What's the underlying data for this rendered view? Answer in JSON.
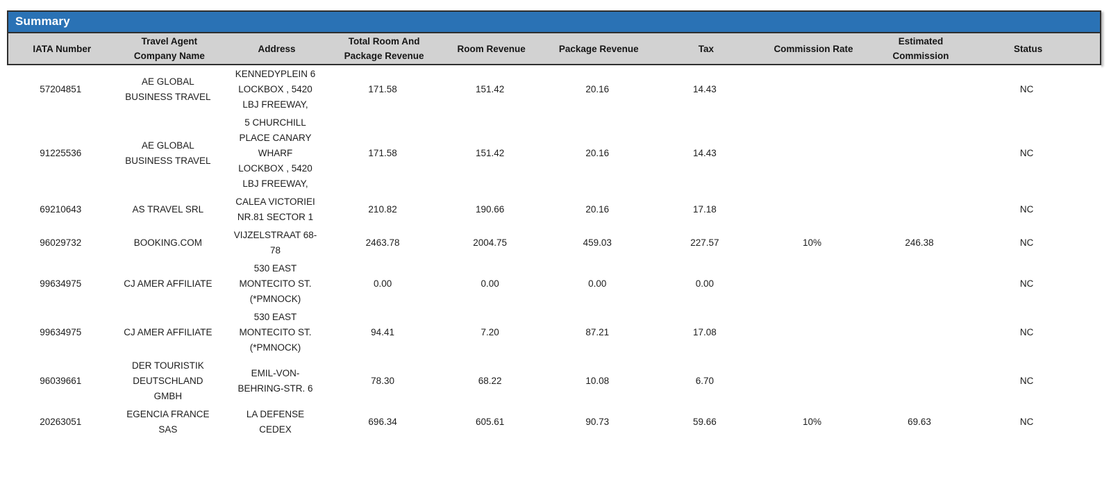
{
  "title_bar": {
    "label": "Summary"
  },
  "colors": {
    "title_bar_bg": "#2a72b5",
    "title_bar_text": "#ffffff",
    "column_header_bg": "#d2d2d2",
    "border": "#2f2f2f",
    "body_text": "#1d1d1d"
  },
  "table": {
    "columns": [
      {
        "key": "iata",
        "label": "IATA Number"
      },
      {
        "key": "company",
        "label": "Travel Agent\nCompany Name"
      },
      {
        "key": "address",
        "label": "Address"
      },
      {
        "key": "total_revenue",
        "label": "Total Room And\nPackage Revenue"
      },
      {
        "key": "room_revenue",
        "label": "Room Revenue"
      },
      {
        "key": "package_revenue",
        "label": "Package Revenue"
      },
      {
        "key": "tax",
        "label": "Tax"
      },
      {
        "key": "commission_rate",
        "label": "Commission Rate"
      },
      {
        "key": "estimated_commission",
        "label": "Estimated\nCommission"
      },
      {
        "key": "status",
        "label": "Status"
      }
    ],
    "rows": [
      {
        "iata": "57204851",
        "company": "AE GLOBAL\nBUSINESS TRAVEL",
        "address": "KENNEDYPLEIN 6\nLOCKBOX , 5420\nLBJ FREEWAY,",
        "total_revenue": "171.58",
        "room_revenue": "151.42",
        "package_revenue": "20.16",
        "tax": "14.43",
        "commission_rate": "",
        "estimated_commission": "",
        "status": "NC"
      },
      {
        "iata": "91225536",
        "company": "AE GLOBAL\nBUSINESS TRAVEL",
        "address": "5 CHURCHILL\nPLACE CANARY\nWHARF\nLOCKBOX , 5420\nLBJ FREEWAY,",
        "total_revenue": "171.58",
        "room_revenue": "151.42",
        "package_revenue": "20.16",
        "tax": "14.43",
        "commission_rate": "",
        "estimated_commission": "",
        "status": "NC"
      },
      {
        "iata": "69210643",
        "company": "AS TRAVEL SRL",
        "address": "CALEA VICTORIEI\nNR.81 SECTOR 1",
        "total_revenue": "210.82",
        "room_revenue": "190.66",
        "package_revenue": "20.16",
        "tax": "17.18",
        "commission_rate": "",
        "estimated_commission": "",
        "status": "NC"
      },
      {
        "iata": "96029732",
        "company": "BOOKING.COM",
        "address": "VIJZELSTRAAT 68-\n78",
        "total_revenue": "2463.78",
        "room_revenue": "2004.75",
        "package_revenue": "459.03",
        "tax": "227.57",
        "commission_rate": "10%",
        "estimated_commission": "246.38",
        "status": "NC"
      },
      {
        "iata": "99634975",
        "company": "CJ AMER AFFILIATE",
        "address": "530 EAST\nMONTECITO ST.\n(*PMNOCK)",
        "total_revenue": "0.00",
        "room_revenue": "0.00",
        "package_revenue": "0.00",
        "tax": "0.00",
        "commission_rate": "",
        "estimated_commission": "",
        "status": "NC"
      },
      {
        "iata": "99634975",
        "company": "CJ AMER AFFILIATE",
        "address": "530 EAST\nMONTECITO ST.\n(*PMNOCK)",
        "total_revenue": "94.41",
        "room_revenue": "7.20",
        "package_revenue": "87.21",
        "tax": "17.08",
        "commission_rate": "",
        "estimated_commission": "",
        "status": "NC"
      },
      {
        "iata": "96039661",
        "company": "DER TOURISTIK\nDEUTSCHLAND\nGMBH",
        "address": "EMIL-VON-\nBEHRING-STR. 6",
        "total_revenue": "78.30",
        "room_revenue": "68.22",
        "package_revenue": "10.08",
        "tax": "6.70",
        "commission_rate": "",
        "estimated_commission": "",
        "status": "NC"
      },
      {
        "iata": "20263051",
        "company": "EGENCIA FRANCE\nSAS",
        "address": "LA DEFENSE\nCEDEX",
        "total_revenue": "696.34",
        "room_revenue": "605.61",
        "package_revenue": "90.73",
        "tax": "59.66",
        "commission_rate": "10%",
        "estimated_commission": "69.63",
        "status": "NC"
      }
    ]
  }
}
